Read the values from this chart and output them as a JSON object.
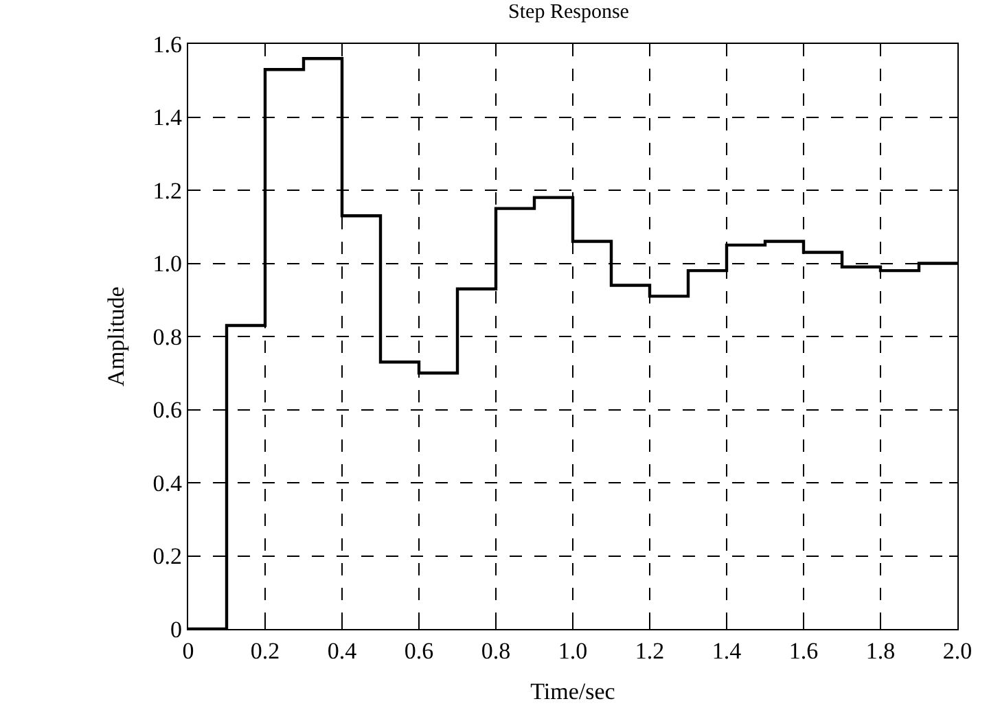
{
  "chart_data": {
    "type": "step",
    "title": "Step Response",
    "xlabel": "Time/sec",
    "ylabel": "Amplitude",
    "x": [
      0,
      0.1,
      0.2,
      0.3,
      0.4,
      0.5,
      0.6,
      0.7,
      0.8,
      0.9,
      1.0,
      1.1,
      1.2,
      1.3,
      1.4,
      1.5,
      1.6,
      1.7,
      1.8,
      1.9,
      2.0
    ],
    "values": [
      0,
      0.83,
      1.53,
      1.56,
      1.13,
      0.73,
      0.7,
      0.93,
      1.15,
      1.18,
      1.06,
      0.94,
      0.91,
      0.98,
      1.05,
      1.06,
      1.03,
      0.99,
      0.98,
      1.0,
      1.0
    ],
    "color": "#000000",
    "xlim": [
      0,
      2.0
    ],
    "ylim": [
      0,
      1.6
    ],
    "xticks": [
      0,
      0.2,
      0.4,
      0.6,
      0.8,
      {
        "value": 1.0,
        "label": "1.0"
      },
      1.2,
      1.4,
      1.6,
      1.8,
      {
        "value": 2.0,
        "label": "2.0"
      }
    ],
    "yticks": [
      0,
      0.2,
      0.4,
      0.6,
      0.8,
      {
        "value": 1.0,
        "label": "1.0"
      },
      1.2,
      1.4,
      1.6
    ],
    "grid": true
  }
}
